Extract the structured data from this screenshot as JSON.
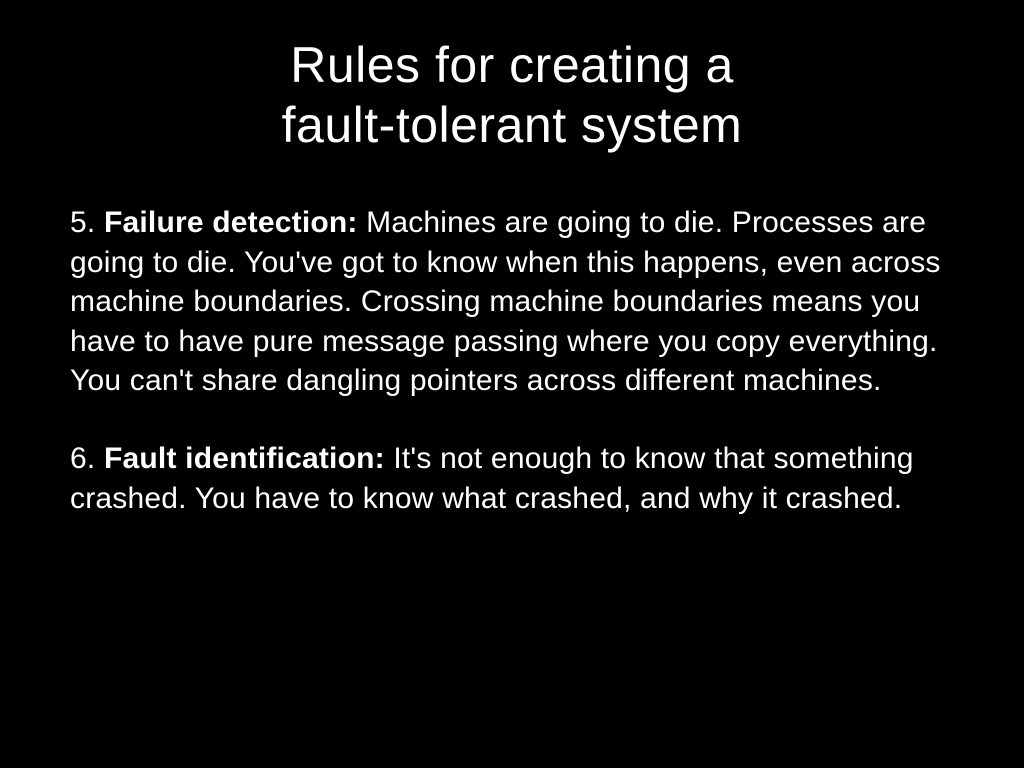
{
  "slide": {
    "title_line1": "Rules for creating a",
    "title_line2": "fault-tolerant system",
    "background_color": "#000000",
    "text_color": "#ffffff",
    "title_fontsize": 50,
    "body_fontsize": 30,
    "font_family": "Helvetica Neue",
    "rules": [
      {
        "number": "5. ",
        "label": "Failure detection:",
        "text": " Machines are going to die. Processes are going to die. You've got to know when this happens, even across machine boundaries. Crossing machine boundaries means you have to have pure message passing where you copy everything. You can't share dangling pointers across different machines."
      },
      {
        "number": "6. ",
        "label": "Fault identification:",
        "text": " It's not enough to know that something crashed. You have to know what crashed, and why it crashed."
      }
    ]
  }
}
